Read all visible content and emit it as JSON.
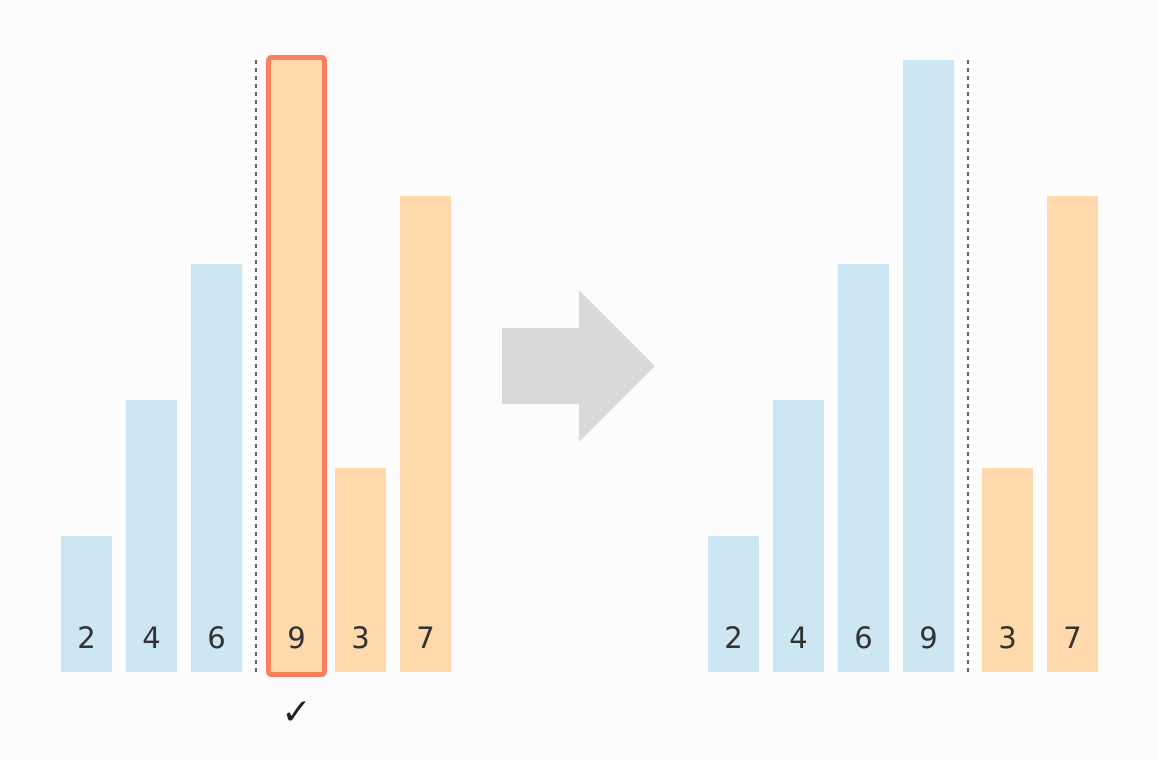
{
  "colors": {
    "sorted": "#cce6f4",
    "unsorted": "#ffd8ac",
    "highlight_stroke": "#fa7f5f",
    "arrow": "#d9d9d9",
    "divider": "#333333",
    "label": "#333333"
  },
  "arrow_icon": "right-arrow-icon",
  "check_icon": "check-mark-icon",
  "chart_data": [
    {
      "type": "bar",
      "panel": "before",
      "categories": [
        "2",
        "4",
        "6",
        "9",
        "3",
        "7"
      ],
      "values": [
        2,
        4,
        6,
        9,
        3,
        7
      ],
      "state": [
        "sorted",
        "sorted",
        "sorted",
        "unsorted",
        "unsorted",
        "unsorted"
      ],
      "divider_after_index": 2,
      "highlight_index": 3,
      "check_index": 3,
      "check_symbol": "✓",
      "ylim": [
        0,
        9
      ]
    },
    {
      "type": "bar",
      "panel": "after",
      "categories": [
        "2",
        "4",
        "6",
        "9",
        "3",
        "7"
      ],
      "values": [
        2,
        4,
        6,
        9,
        3,
        7
      ],
      "state": [
        "sorted",
        "sorted",
        "sorted",
        "sorted",
        "unsorted",
        "unsorted"
      ],
      "divider_after_index": 3,
      "ylim": [
        0,
        9
      ]
    }
  ]
}
